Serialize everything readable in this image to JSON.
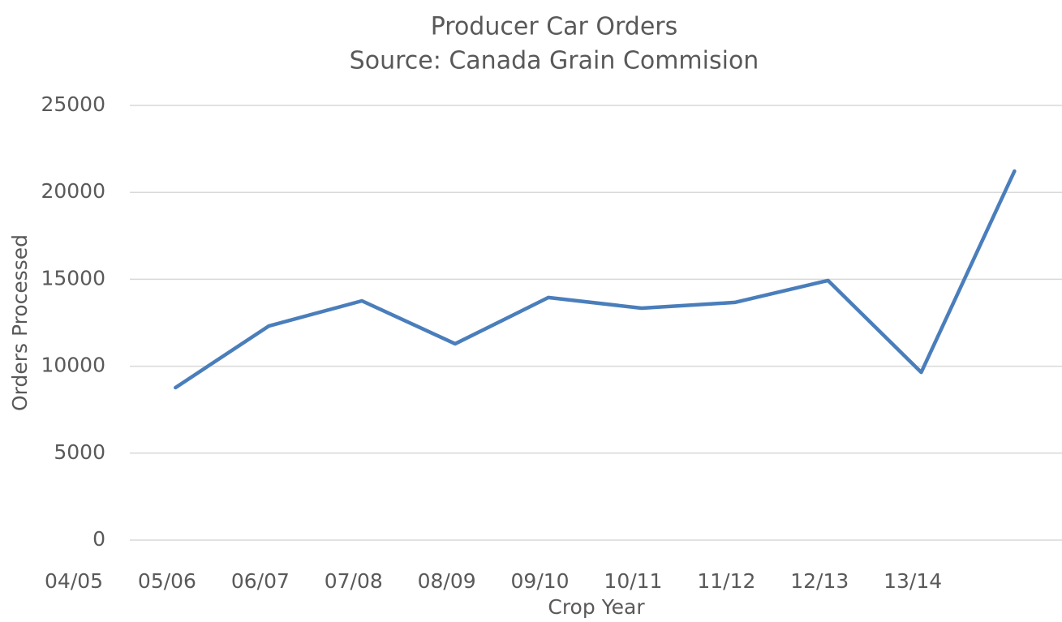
{
  "chart_data": {
    "type": "line",
    "title": "Producer Car Orders",
    "subtitle": "Source: Canada Grain Commision",
    "x_label": "Crop Year",
    "y_label": "Orders Processed",
    "categories": [
      "04/05",
      "05/06",
      "06/07",
      "07/08",
      "08/09",
      "09/10",
      "10/11",
      "11/12",
      "12/13",
      "13/14"
    ],
    "values": [
      8770,
      12310,
      13760,
      11290,
      13950,
      13340,
      13670,
      14930,
      9650,
      21220
    ],
    "color": "#4a7ebb",
    "ylim": [
      0,
      25000
    ],
    "yticks": [
      0,
      5000,
      10000,
      15000,
      20000,
      25000
    ],
    "grid": true
  }
}
